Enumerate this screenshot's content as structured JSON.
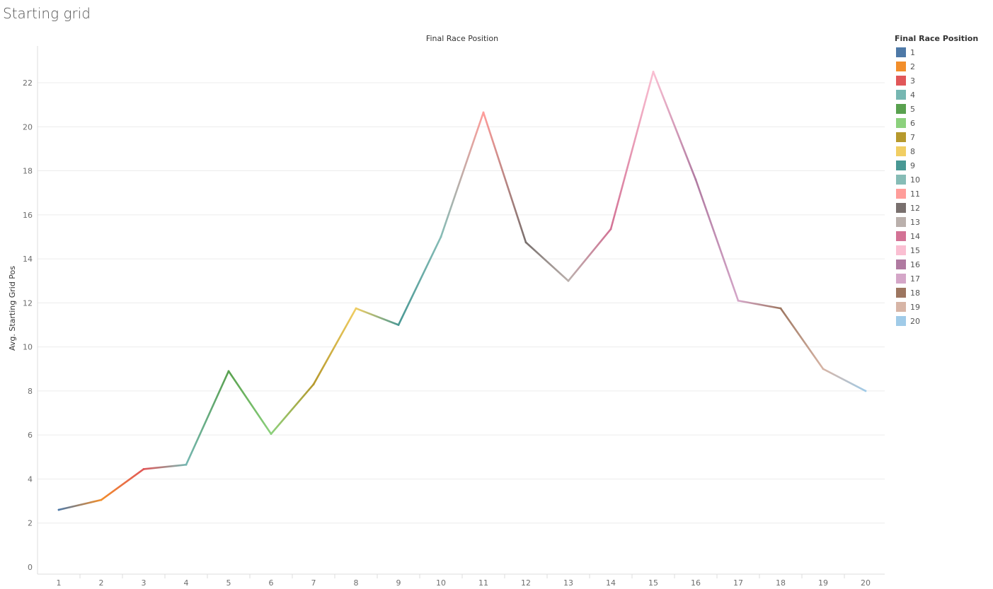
{
  "page": {
    "title": "Starting grid"
  },
  "chart_data": {
    "type": "line",
    "top_label": "Final Race Position",
    "xlabel": "",
    "ylabel": "Avg. Starting Grid Pos",
    "x": [
      1,
      2,
      3,
      4,
      5,
      6,
      7,
      8,
      9,
      10,
      11,
      12,
      13,
      14,
      15,
      16,
      17,
      18,
      19,
      20
    ],
    "xticks": [
      "1",
      "2",
      "3",
      "4",
      "5",
      "6",
      "7",
      "8",
      "9",
      "10",
      "11",
      "12",
      "13",
      "14",
      "15",
      "16",
      "17",
      "18",
      "19",
      "20"
    ],
    "values": [
      2.6,
      3.05,
      4.45,
      4.65,
      8.9,
      6.05,
      8.3,
      11.75,
      11.0,
      15.0,
      20.65,
      14.75,
      13.0,
      15.35,
      22.5,
      17.6,
      12.1,
      11.75,
      9.0,
      8.0
    ],
    "ylim": [
      0,
      23
    ],
    "yticks": [
      "0",
      "2",
      "4",
      "6",
      "8",
      "10",
      "12",
      "14",
      "16",
      "18",
      "20",
      "22"
    ],
    "grid": true,
    "colors": [
      "#4e79a7",
      "#f28e2b",
      "#e15759",
      "#76b7b2",
      "#59a14f",
      "#8cd17d",
      "#b6992d",
      "#f1ce63",
      "#499894",
      "#86bcb6",
      "#ff9d9a",
      "#79706e",
      "#bab0ac",
      "#d37295",
      "#fabfd2",
      "#b07aa1",
      "#d4a6c8",
      "#9d7660",
      "#d7b5a6",
      "#a0cbe8"
    ],
    "legend": {
      "title": "Final Race Position",
      "position": "right",
      "items": [
        "1",
        "2",
        "3",
        "4",
        "5",
        "6",
        "7",
        "8",
        "9",
        "10",
        "11",
        "12",
        "13",
        "14",
        "15",
        "16",
        "17",
        "18",
        "19",
        "20"
      ]
    }
  }
}
